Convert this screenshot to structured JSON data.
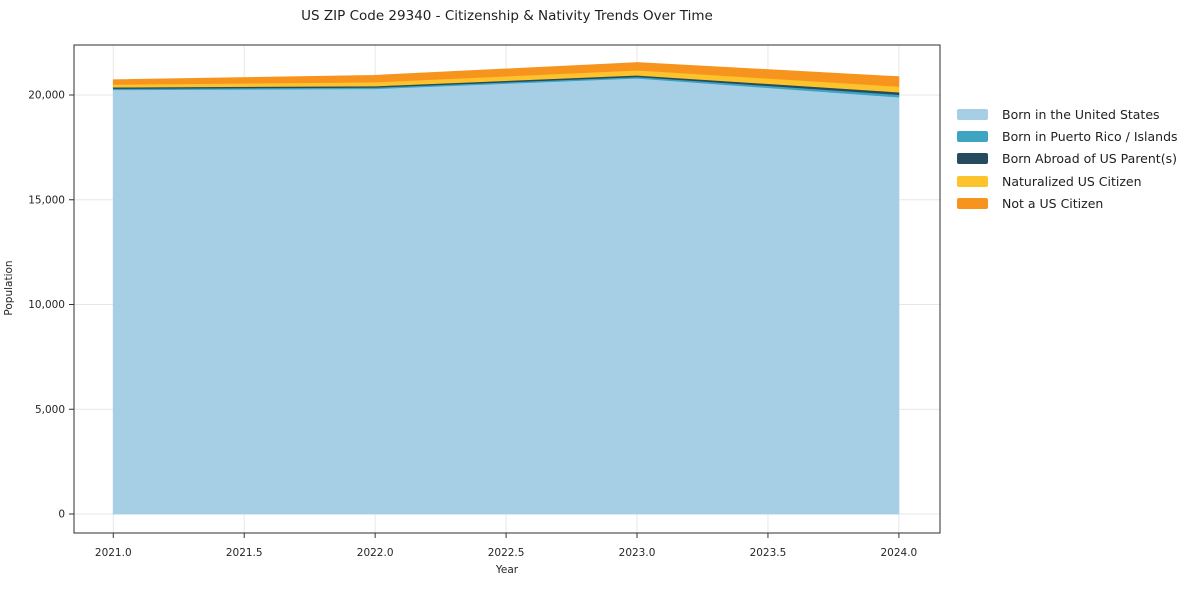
{
  "figure": {
    "background": "#ffffff"
  },
  "chart_data": {
    "type": "area",
    "stacked": true,
    "title": "US ZIP Code 29340 - Citizenship & Nativity Trends Over Time",
    "xlabel": "Year",
    "ylabel": "Population",
    "x": [
      2021,
      2022,
      2023,
      2024
    ],
    "series": [
      {
        "name": "Born in the United States",
        "color": "#a6cfe5",
        "values": [
          20250,
          20300,
          20800,
          19900
        ]
      },
      {
        "name": "Born in Puerto Rico / Islands",
        "color": "#3da4c2",
        "values": [
          60,
          65,
          70,
          120
        ]
      },
      {
        "name": "Born Abroad of US Parent(s)",
        "color": "#254b5c",
        "values": [
          65,
          65,
          75,
          120
        ]
      },
      {
        "name": "Naturalized US Citizen",
        "color": "#fcc32c",
        "values": [
          130,
          190,
          240,
          270
        ]
      },
      {
        "name": "Not a US Citizen",
        "color": "#f7941e",
        "values": [
          225,
          320,
          365,
          465
        ]
      }
    ],
    "totals": [
      20730,
      20940,
      21550,
      20875
    ],
    "xticks": {
      "values": [
        2021.0,
        2021.5,
        2022.0,
        2022.5,
        2023.0,
        2023.5,
        2024.0
      ],
      "labels": [
        "2021.0",
        "2021.5",
        "2022.0",
        "2022.5",
        "2023.0",
        "2023.5",
        "2024.0"
      ]
    },
    "yticks": {
      "values": [
        0,
        5000,
        10000,
        15000,
        20000
      ],
      "labels": [
        "0",
        "5,000",
        "10,000",
        "15,000",
        "20,000"
      ]
    },
    "xlim": [
      2020.85,
      2024.157
    ],
    "ylim": [
      -907,
      22387
    ],
    "grid": true,
    "legend_position": "right of plot, no frame"
  },
  "style": {
    "grid_color": "#e7e7e7",
    "spine_color": "#2e2e2e",
    "tick_color": "#333333",
    "tick_label_color": "#262626"
  }
}
